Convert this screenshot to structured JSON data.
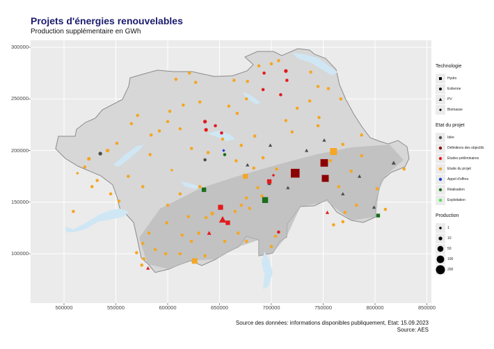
{
  "title": "Projets d'énergies renouvelables",
  "subtitle": "Production supplémentaire en GWh",
  "caption_source": "Source des données: informations disponibles publiquement, Etat: 15.09.2023",
  "caption_author": "Source: AES",
  "axes": {
    "x_ticks": [
      "500000",
      "550000",
      "600000",
      "650000",
      "700000",
      "750000",
      "800000",
      "850000"
    ],
    "y_ticks": [
      "300000",
      "250000",
      "200000",
      "150000",
      "100000"
    ],
    "xlim": [
      470000,
      850000
    ],
    "ylim": [
      70000,
      310000
    ]
  },
  "colors": {
    "panel": "#ebebeb",
    "lake": "#cfe7f5",
    "idee": "#4d4d4d",
    "definitions": "#8b0000",
    "etudes_prelim": "#e31a1c",
    "etude_projet": "#f5a623",
    "appel": "#1f3fd6",
    "realisation": "#1b6e1b",
    "exploitation": "#4ddf4d"
  },
  "legend": {
    "technology": {
      "title": "Technologie",
      "items": [
        {
          "label": "Hydro",
          "shape": "square"
        },
        {
          "label": "Eolienne",
          "shape": "circle"
        },
        {
          "label": "PV",
          "shape": "triangle"
        },
        {
          "label": "Biomasse",
          "shape": "diamond"
        }
      ]
    },
    "status": {
      "title": "Etat du projet",
      "items": [
        {
          "label": "Idée",
          "color": "#4d4d4d"
        },
        {
          "label": "Définitions des objectifs",
          "color": "#8b0000"
        },
        {
          "label": "Etudes préliminaires",
          "color": "#e31a1c"
        },
        {
          "label": "Etude du projet",
          "color": "#f5a623"
        },
        {
          "label": "Appel d'offres",
          "color": "#1f3fd6"
        },
        {
          "label": "Réalisation",
          "color": "#1b6e1b"
        },
        {
          "label": "Exploitation",
          "color": "#4ddf4d"
        }
      ]
    },
    "production": {
      "title": "Production",
      "items": [
        {
          "label": "1",
          "value": 1
        },
        {
          "label": "10",
          "value": 10
        },
        {
          "label": "50",
          "value": 50
        },
        {
          "label": "100",
          "value": 100
        },
        {
          "label": "200",
          "value": 200
        }
      ]
    }
  },
  "map_points": [
    {
      "x": 535000,
      "y": 197000,
      "tech": "circle",
      "status": "idee",
      "prod": 10
    },
    {
      "x": 524000,
      "y": 192000,
      "tech": "circle",
      "status": "etude_projet",
      "prod": 10
    },
    {
      "x": 513000,
      "y": 178000,
      "tech": "diamond",
      "status": "etude_projet",
      "prod": 5
    },
    {
      "x": 542000,
      "y": 200000,
      "tech": "circle",
      "status": "etude_projet",
      "prod": 10
    },
    {
      "x": 551000,
      "y": 207000,
      "tech": "circle",
      "status": "etude_projet",
      "prod": 5
    },
    {
      "x": 527000,
      "y": 165000,
      "tech": "circle",
      "status": "etude_projet",
      "prod": 5
    },
    {
      "x": 545000,
      "y": 158000,
      "tech": "circle",
      "status": "etude_projet",
      "prod": 5
    },
    {
      "x": 553000,
      "y": 151000,
      "tech": "circle",
      "status": "etude_projet",
      "prod": 5
    },
    {
      "x": 562000,
      "y": 175000,
      "tech": "circle",
      "status": "etude_projet",
      "prod": 5
    },
    {
      "x": 576000,
      "y": 165000,
      "tech": "circle",
      "status": "etude_projet",
      "prod": 5
    },
    {
      "x": 583000,
      "y": 196000,
      "tech": "circle",
      "status": "etude_projet",
      "prod": 5
    },
    {
      "x": 565000,
      "y": 226000,
      "tech": "circle",
      "status": "etude_projet",
      "prod": 5
    },
    {
      "x": 571000,
      "y": 234000,
      "tech": "circle",
      "status": "etude_projet",
      "prod": 5
    },
    {
      "x": 592000,
      "y": 219000,
      "tech": "circle",
      "status": "etude_projet",
      "prod": 5
    },
    {
      "x": 600000,
      "y": 228000,
      "tech": "circle",
      "status": "etude_projet",
      "prod": 5
    },
    {
      "x": 612000,
      "y": 221000,
      "tech": "circle",
      "status": "etude_projet",
      "prod": 5
    },
    {
      "x": 623000,
      "y": 202000,
      "tech": "circle",
      "status": "etude_projet",
      "prod": 5
    },
    {
      "x": 604000,
      "y": 181000,
      "tech": "diamond",
      "status": "etude_projet",
      "prod": 5
    },
    {
      "x": 612000,
      "y": 158000,
      "tech": "circle",
      "status": "etude_projet",
      "prod": 5
    },
    {
      "x": 631000,
      "y": 165000,
      "tech": "circle",
      "status": "etude_projet",
      "prod": 5
    },
    {
      "x": 635000,
      "y": 162000,
      "tech": "square",
      "status": "realisation",
      "prod": 20
    },
    {
      "x": 636000,
      "y": 191000,
      "tech": "circle",
      "status": "idee",
      "prod": 5
    },
    {
      "x": 639000,
      "y": 198000,
      "tech": "circle",
      "status": "etude_projet",
      "prod": 5
    },
    {
      "x": 653000,
      "y": 211000,
      "tech": "circle",
      "status": "etude_projet",
      "prod": 5
    },
    {
      "x": 654000,
      "y": 200000,
      "tech": "diamond",
      "status": "appel",
      "prod": 5
    },
    {
      "x": 655000,
      "y": 196000,
      "tech": "circle",
      "status": "realisation",
      "prod": 5
    },
    {
      "x": 666000,
      "y": 190000,
      "tech": "circle",
      "status": "etude_projet",
      "prod": 5
    },
    {
      "x": 671000,
      "y": 205000,
      "tech": "circle",
      "status": "etude_projet",
      "prod": 5
    },
    {
      "x": 677000,
      "y": 186000,
      "tech": "triangle",
      "status": "idee",
      "prod": 5
    },
    {
      "x": 675000,
      "y": 175000,
      "tech": "square",
      "status": "etude_projet",
      "prod": 30
    },
    {
      "x": 687000,
      "y": 164000,
      "tech": "circle",
      "status": "etude_projet",
      "prod": 5
    },
    {
      "x": 676000,
      "y": 154000,
      "tech": "circle",
      "status": "etude_projet",
      "prod": 5
    },
    {
      "x": 691000,
      "y": 156000,
      "tech": "circle",
      "status": "etude_projet",
      "prod": 5
    },
    {
      "x": 698000,
      "y": 168000,
      "tech": "triangle",
      "status": "idee",
      "prod": 5
    },
    {
      "x": 705000,
      "y": 182000,
      "tech": "circle",
      "status": "etude_projet",
      "prod": 5
    },
    {
      "x": 683000,
      "y": 183000,
      "tech": "circle",
      "status": "etude_projet",
      "prod": 5
    },
    {
      "x": 692000,
      "y": 193000,
      "tech": "circle",
      "status": "etude_projet",
      "prod": 5
    },
    {
      "x": 699000,
      "y": 205000,
      "tech": "triangle",
      "status": "idee",
      "prod": 5
    },
    {
      "x": 694000,
      "y": 152000,
      "tech": "square",
      "status": "realisation",
      "prod": 50
    },
    {
      "x": 698000,
      "y": 170000,
      "tech": "square",
      "status": "etudes_prelim",
      "prod": 20
    },
    {
      "x": 702000,
      "y": 176000,
      "tech": "diamond",
      "status": "etudes_prelim",
      "prod": 5
    },
    {
      "x": 723000,
      "y": 178000,
      "tech": "square",
      "status": "definitions",
      "prod": 150
    },
    {
      "x": 751000,
      "y": 188000,
      "tech": "square",
      "status": "definitions",
      "prod": 100
    },
    {
      "x": 752000,
      "y": 173000,
      "tech": "square",
      "status": "definitions",
      "prod": 80
    },
    {
      "x": 760000,
      "y": 199000,
      "tech": "square",
      "status": "etude_projet",
      "prod": 80
    },
    {
      "x": 757000,
      "y": 190000,
      "tech": "circle",
      "status": "etude_projet",
      "prod": 5
    },
    {
      "x": 716000,
      "y": 164000,
      "tech": "triangle",
      "status": "idee",
      "prod": 5
    },
    {
      "x": 734000,
      "y": 200000,
      "tech": "triangle",
      "status": "idee",
      "prod": 5
    },
    {
      "x": 751000,
      "y": 210000,
      "tech": "triangle",
      "status": "idee",
      "prod": 5
    },
    {
      "x": 765000,
      "y": 165000,
      "tech": "circle",
      "status": "etude_projet",
      "prod": 5
    },
    {
      "x": 769000,
      "y": 158000,
      "tech": "triangle",
      "status": "idee",
      "prod": 5
    },
    {
      "x": 777000,
      "y": 180000,
      "tech": "circle",
      "status": "etude_projet",
      "prod": 5
    },
    {
      "x": 785000,
      "y": 175000,
      "tech": "triangle",
      "status": "idee",
      "prod": 5
    },
    {
      "x": 787000,
      "y": 195000,
      "tech": "circle",
      "status": "etude_projet",
      "prod": 5
    },
    {
      "x": 802000,
      "y": 163000,
      "tech": "circle",
      "status": "etude_projet",
      "prod": 5
    },
    {
      "x": 818000,
      "y": 188000,
      "tech": "triangle",
      "status": "idee",
      "prod": 10
    },
    {
      "x": 828000,
      "y": 182000,
      "tech": "circle",
      "status": "etude_projet",
      "prod": 5
    },
    {
      "x": 799000,
      "y": 145000,
      "tech": "triangle",
      "status": "idee",
      "prod": 5
    },
    {
      "x": 803000,
      "y": 137000,
      "tech": "square",
      "status": "realisation",
      "prod": 10
    },
    {
      "x": 810000,
      "y": 143000,
      "tech": "circle",
      "status": "etude_projet",
      "prod": 5
    },
    {
      "x": 782000,
      "y": 147000,
      "tech": "circle",
      "status": "etude_projet",
      "prod": 5
    },
    {
      "x": 771000,
      "y": 140000,
      "tech": "circle",
      "status": "etude_projet",
      "prod": 5
    },
    {
      "x": 754000,
      "y": 140000,
      "tech": "triangle",
      "status": "etudes_prelim",
      "prod": 5
    },
    {
      "x": 769000,
      "y": 131000,
      "tech": "circle",
      "status": "etude_projet",
      "prod": 5
    },
    {
      "x": 760000,
      "y": 128000,
      "tech": "circle",
      "status": "etude_projet",
      "prod": 5
    },
    {
      "x": 651000,
      "y": 145000,
      "tech": "square",
      "status": "etudes_prelim",
      "prod": 30
    },
    {
      "x": 653000,
      "y": 133000,
      "tech": "triangle",
      "status": "etudes_prelim",
      "prod": 60
    },
    {
      "x": 658000,
      "y": 130000,
      "tech": "square",
      "status": "etudes_prelim",
      "prod": 20
    },
    {
      "x": 643000,
      "y": 139000,
      "tech": "circle",
      "status": "etude_projet",
      "prod": 10
    },
    {
      "x": 637000,
      "y": 135000,
      "tech": "circle",
      "status": "etude_projet",
      "prod": 5
    },
    {
      "x": 665000,
      "y": 141000,
      "tech": "circle",
      "status": "etude_projet",
      "prod": 5
    },
    {
      "x": 671000,
      "y": 147000,
      "tech": "circle",
      "status": "etude_projet",
      "prod": 5
    },
    {
      "x": 679000,
      "y": 144000,
      "tech": "circle",
      "status": "etude_projet",
      "prod": 5
    },
    {
      "x": 640000,
      "y": 120000,
      "tech": "triangle",
      "status": "etudes_prelim",
      "prod": 10
    },
    {
      "x": 630000,
      "y": 120000,
      "tech": "circle",
      "status": "etude_projet",
      "prod": 5
    },
    {
      "x": 623000,
      "y": 112000,
      "tech": "circle",
      "status": "etude_projet",
      "prod": 5
    },
    {
      "x": 614000,
      "y": 118000,
      "tech": "circle",
      "status": "etude_projet",
      "prod": 5
    },
    {
      "x": 599000,
      "y": 130000,
      "tech": "circle",
      "status": "etude_projet",
      "prod": 5
    },
    {
      "x": 600000,
      "y": 147000,
      "tech": "circle",
      "status": "etude_projet",
      "prod": 5
    },
    {
      "x": 620000,
      "y": 136000,
      "tech": "circle",
      "status": "etude_projet",
      "prod": 5
    },
    {
      "x": 582000,
      "y": 120000,
      "tech": "circle",
      "status": "etude_projet",
      "prod": 5
    },
    {
      "x": 576000,
      "y": 110000,
      "tech": "circle",
      "status": "etude_projet",
      "prod": 5
    },
    {
      "x": 570000,
      "y": 101000,
      "tech": "circle",
      "status": "etude_projet",
      "prod": 5
    },
    {
      "x": 577000,
      "y": 95000,
      "tech": "circle",
      "status": "etude_projet",
      "prod": 5
    },
    {
      "x": 581000,
      "y": 86000,
      "tech": "triangle",
      "status": "etudes_prelim",
      "prod": 5
    },
    {
      "x": 575000,
      "y": 89000,
      "tech": "circle",
      "status": "etude_projet",
      "prod": 5
    },
    {
      "x": 588000,
      "y": 104000,
      "tech": "circle",
      "status": "etude_projet",
      "prod": 5
    },
    {
      "x": 598000,
      "y": 100000,
      "tech": "circle",
      "status": "etude_projet",
      "prod": 5
    },
    {
      "x": 612000,
      "y": 100000,
      "tech": "circle",
      "status": "etude_projet",
      "prod": 5
    },
    {
      "x": 626000,
      "y": 93000,
      "tech": "square",
      "status": "etude_projet",
      "prod": 40
    },
    {
      "x": 636000,
      "y": 98000,
      "tech": "circle",
      "status": "etude_projet",
      "prod": 5
    },
    {
      "x": 655000,
      "y": 112000,
      "tech": "circle",
      "status": "etude_projet",
      "prod": 5
    },
    {
      "x": 668000,
      "y": 120000,
      "tech": "circle",
      "status": "etude_projet",
      "prod": 5
    },
    {
      "x": 676000,
      "y": 112000,
      "tech": "circle",
      "status": "etude_projet",
      "prod": 5
    },
    {
      "x": 704000,
      "y": 117000,
      "tech": "circle",
      "status": "etude_projet",
      "prod": 5
    },
    {
      "x": 707000,
      "y": 121000,
      "tech": "circle",
      "status": "etudes_prelim",
      "prod": 5
    },
    {
      "x": 700000,
      "y": 107000,
      "tech": "circle",
      "status": "etude_projet",
      "prod": 5
    },
    {
      "x": 509000,
      "y": 141000,
      "tech": "circle",
      "status": "etude_projet",
      "prod": 5
    },
    {
      "x": 532000,
      "y": 171000,
      "tech": "circle",
      "status": "etude_projet",
      "prod": 5
    },
    {
      "x": 520000,
      "y": 184000,
      "tech": "circle",
      "status": "etude_projet",
      "prod": 5
    },
    {
      "x": 584000,
      "y": 215000,
      "tech": "circle",
      "status": "etude_projet",
      "prod": 5
    },
    {
      "x": 602000,
      "y": 238000,
      "tech": "circle",
      "status": "etude_projet",
      "prod": 5
    },
    {
      "x": 615000,
      "y": 244000,
      "tech": "circle",
      "status": "etude_projet",
      "prod": 5
    },
    {
      "x": 631000,
      "y": 247000,
      "tech": "circle",
      "status": "etude_projet",
      "prod": 5
    },
    {
      "x": 636000,
      "y": 228000,
      "tech": "circle",
      "status": "etudes_prelim",
      "prod": 10
    },
    {
      "x": 637000,
      "y": 220000,
      "tech": "circle",
      "status": "etudes_prelim",
      "prod": 10
    },
    {
      "x": 646000,
      "y": 224000,
      "tech": "circle",
      "status": "etudes_prelim",
      "prod": 5
    },
    {
      "x": 652000,
      "y": 217000,
      "tech": "circle",
      "status": "etudes_prelim",
      "prod": 5
    },
    {
      "x": 667000,
      "y": 236000,
      "tech": "circle",
      "status": "etude_projet",
      "prod": 5
    },
    {
      "x": 659000,
      "y": 243000,
      "tech": "circle",
      "status": "etude_projet",
      "prod": 5
    },
    {
      "x": 676000,
      "y": 250000,
      "tech": "circle",
      "status": "etude_projet",
      "prod": 5
    },
    {
      "x": 692000,
      "y": 259000,
      "tech": "circle",
      "status": "etudes_prelim",
      "prod": 5
    },
    {
      "x": 693000,
      "y": 275000,
      "tech": "circle",
      "status": "etudes_prelim",
      "prod": 5
    },
    {
      "x": 714000,
      "y": 277000,
      "tech": "circle",
      "status": "etudes_prelim",
      "prod": 10
    },
    {
      "x": 715000,
      "y": 268000,
      "tech": "circle",
      "status": "etudes_prelim",
      "prod": 5
    },
    {
      "x": 709000,
      "y": 254000,
      "tech": "circle",
      "status": "etudes_prelim",
      "prod": 5
    },
    {
      "x": 725000,
      "y": 241000,
      "tech": "circle",
      "status": "etude_projet",
      "prod": 5
    },
    {
      "x": 737000,
      "y": 248000,
      "tech": "circle",
      "status": "etude_projet",
      "prod": 5
    },
    {
      "x": 720000,
      "y": 218000,
      "tech": "circle",
      "status": "etude_projet",
      "prod": 5
    },
    {
      "x": 714000,
      "y": 229000,
      "tech": "circle",
      "status": "etude_projet",
      "prod": 5
    },
    {
      "x": 684000,
      "y": 214000,
      "tech": "circle",
      "status": "etude_projet",
      "prod": 5
    },
    {
      "x": 688000,
      "y": 282000,
      "tech": "circle",
      "status": "etude_projet",
      "prod": 5
    },
    {
      "x": 700000,
      "y": 284000,
      "tech": "circle",
      "status": "etude_projet",
      "prod": 5
    },
    {
      "x": 707000,
      "y": 287000,
      "tech": "circle",
      "status": "etude_projet",
      "prod": 5
    },
    {
      "x": 738000,
      "y": 276000,
      "tech": "circle",
      "status": "etude_projet",
      "prod": 5
    },
    {
      "x": 745000,
      "y": 262000,
      "tech": "circle",
      "status": "etude_projet",
      "prod": 5
    },
    {
      "x": 755000,
      "y": 260000,
      "tech": "circle",
      "status": "etude_projet",
      "prod": 5
    },
    {
      "x": 767000,
      "y": 250000,
      "tech": "circle",
      "status": "etude_projet",
      "prod": 5
    },
    {
      "x": 746000,
      "y": 232000,
      "tech": "circle",
      "status": "etude_projet",
      "prod": 5
    },
    {
      "x": 769000,
      "y": 206000,
      "tech": "circle",
      "status": "etude_projet",
      "prod": 5
    },
    {
      "x": 787000,
      "y": 215000,
      "tech": "circle",
      "status": "etude_projet",
      "prod": 5
    },
    {
      "x": 745000,
      "y": 224000,
      "tech": "circle",
      "status": "etude_projet",
      "prod": 5
    },
    {
      "x": 608000,
      "y": 269000,
      "tech": "circle",
      "status": "etude_projet",
      "prod": 5
    },
    {
      "x": 621000,
      "y": 275000,
      "tech": "circle",
      "status": "etude_projet",
      "prod": 5
    },
    {
      "x": 627000,
      "y": 266000,
      "tech": "circle",
      "status": "etude_projet",
      "prod": 5
    },
    {
      "x": 664000,
      "y": 268000,
      "tech": "circle",
      "status": "etude_projet",
      "prod": 5
    },
    {
      "x": 677000,
      "y": 267000,
      "tech": "circle",
      "status": "etude_projet",
      "prod": 5
    }
  ]
}
